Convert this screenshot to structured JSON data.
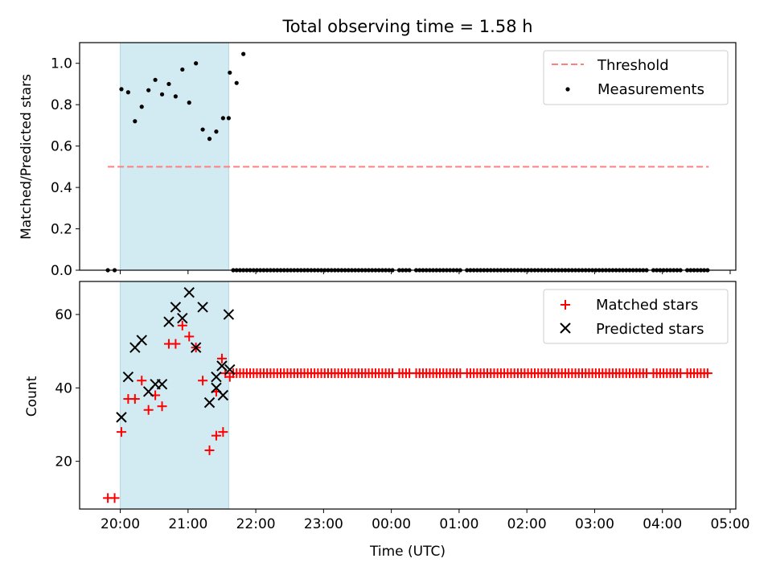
{
  "title": "Total observing time = 1.58 h",
  "xlabel": "Time (UTC)",
  "colors": {
    "shade": "#add8e6",
    "threshold": "#ff7f7f",
    "measurements": "#000000",
    "matched": "#ff0000",
    "predicted": "#000000"
  },
  "chart_data": [
    {
      "type": "scatter",
      "ylabel": "Matched/Predicted stars",
      "xlim": [
        "19:24",
        "05:05"
      ],
      "ylim": [
        0,
        1.1
      ],
      "yticks": [
        0.0,
        0.2,
        0.4,
        0.6,
        0.8,
        1.0
      ],
      "ytick_labels": [
        "0.0",
        "0.2",
        "0.4",
        "0.6",
        "0.8",
        "1.0"
      ],
      "shaded_interval": [
        "20:00",
        "21:36"
      ],
      "legend_position": "upper right",
      "legend": [
        "Threshold",
        "Measurements"
      ],
      "threshold": {
        "name": "Threshold",
        "y": 0.5,
        "x_range": [
          "19:49",
          "04:41"
        ],
        "style": "dashed"
      },
      "series": [
        {
          "name": "Measurements",
          "marker": "dot",
          "x": [
            "19:49",
            "19:55",
            "20:01",
            "20:07",
            "20:13",
            "20:19",
            "20:25",
            "20:31",
            "20:37",
            "20:43",
            "20:49",
            "20:55",
            "21:01",
            "21:07",
            "21:13",
            "21:19",
            "21:25",
            "21:31",
            "21:37",
            "21:43",
            "21:49"
          ],
          "y": [
            0,
            0,
            0.875,
            0.86,
            0.72,
            0.79,
            0.87,
            0.92,
            0.85,
            0.9,
            0.84,
            0.97,
            0.81,
            1.0,
            0.68,
            0.635,
            0.67,
            0.735,
            0.955,
            0.905,
            1.045
          ],
          "x_tail": [
            "21:36"
          ],
          "y_tail": [
            0.735
          ],
          "zero_after_from": "21:40",
          "zero_after_to": "04:40",
          "zero_step_min": 3
        }
      ]
    },
    {
      "type": "scatter",
      "ylabel": "Count",
      "xlim": [
        "19:24",
        "05:05"
      ],
      "ylim": [
        7,
        69
      ],
      "yticks": [
        20,
        40,
        60
      ],
      "ytick_labels": [
        "20",
        "40",
        "60"
      ],
      "shaded_interval": [
        "20:00",
        "21:36"
      ],
      "legend_position": "upper right",
      "legend": [
        "Matched stars",
        "Predicted stars"
      ],
      "series": [
        {
          "name": "Matched stars",
          "marker": "plus",
          "x": [
            "19:49",
            "19:55",
            "20:01",
            "20:07",
            "20:13",
            "20:19",
            "20:25",
            "20:31",
            "20:37",
            "20:43",
            "20:49",
            "20:55",
            "21:01",
            "21:07",
            "21:13",
            "21:19",
            "21:25",
            "21:31",
            "21:37"
          ],
          "y": [
            10,
            10,
            28,
            37,
            37,
            42,
            34,
            38,
            35,
            52,
            52,
            57,
            54,
            51,
            42,
            23,
            27,
            28,
            43
          ],
          "x_extra": [
            "21:25",
            "21:30",
            "21:33"
          ],
          "y_extra": [
            39,
            48,
            44
          ],
          "const_after_from": "21:40",
          "const_after_to": "04:40",
          "const_value": 44,
          "const_step_min": 3
        },
        {
          "name": "Predicted stars",
          "marker": "x",
          "x": [
            "20:01",
            "20:07",
            "20:13",
            "20:19",
            "20:25",
            "20:31",
            "20:37",
            "20:43",
            "20:49",
            "20:55",
            "21:01",
            "21:07",
            "21:13",
            "21:19",
            "21:25",
            "21:31",
            "21:37"
          ],
          "y": [
            32,
            43,
            51,
            53,
            39,
            41,
            41,
            58,
            62,
            59,
            66,
            51,
            62,
            36,
            40,
            38,
            45
          ],
          "x_extra": [
            "21:25",
            "21:30",
            "21:36"
          ],
          "y_extra": [
            43,
            46,
            60
          ]
        }
      ]
    }
  ],
  "xtick_labels": [
    "20:00",
    "21:00",
    "22:00",
    "23:00",
    "00:00",
    "01:00",
    "02:00",
    "03:00",
    "04:00",
    "05:00"
  ]
}
